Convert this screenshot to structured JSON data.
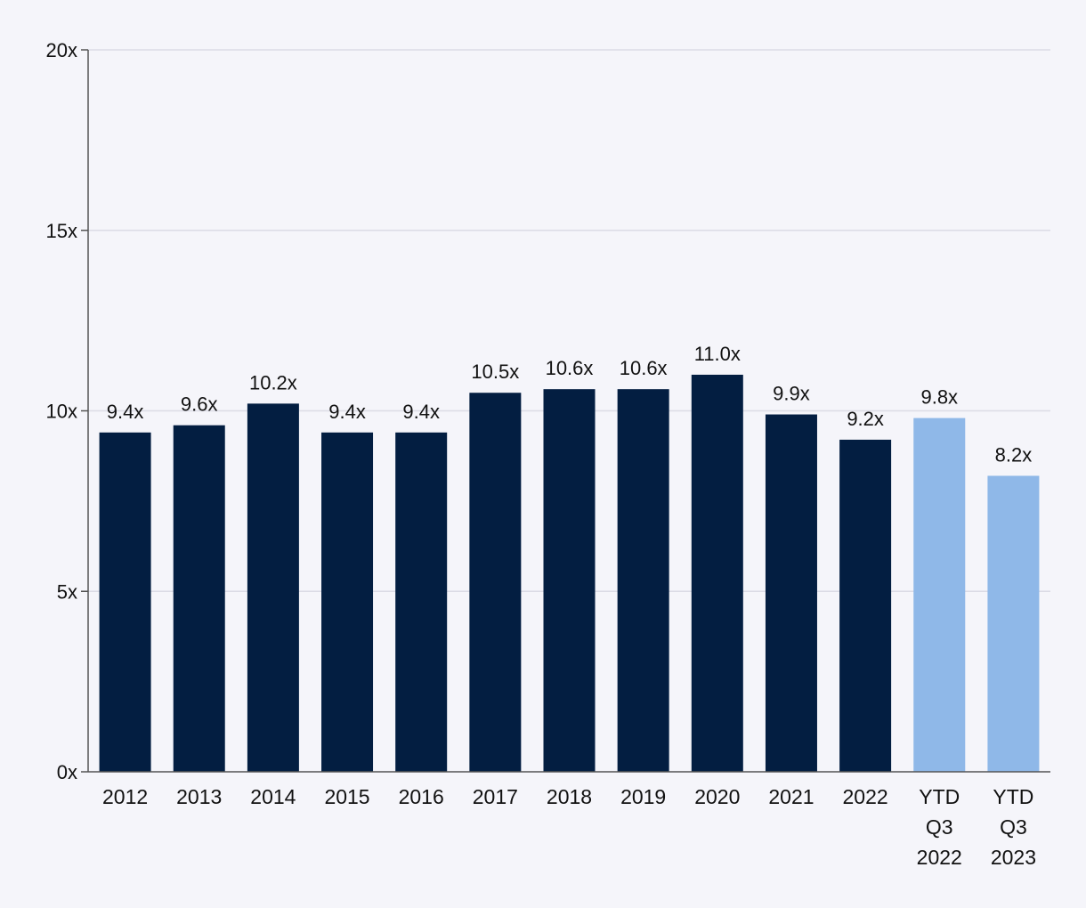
{
  "chart_data": {
    "type": "bar",
    "title": "",
    "xlabel": "",
    "ylabel": "",
    "ylim": [
      0,
      20
    ],
    "yticks": [
      {
        "value": 0,
        "label": "0x"
      },
      {
        "value": 5,
        "label": "5x"
      },
      {
        "value": 10,
        "label": "10x"
      },
      {
        "value": 15,
        "label": "15x"
      },
      {
        "value": 20,
        "label": "20x"
      }
    ],
    "grid": true,
    "legend": "none",
    "bars": [
      {
        "category": [
          "2012"
        ],
        "value": 9.4,
        "label": "9.4x",
        "color": "#031e41"
      },
      {
        "category": [
          "2013"
        ],
        "value": 9.6,
        "label": "9.6x",
        "color": "#031e41"
      },
      {
        "category": [
          "2014"
        ],
        "value": 10.2,
        "label": "10.2x",
        "color": "#031e41"
      },
      {
        "category": [
          "2015"
        ],
        "value": 9.4,
        "label": "9.4x",
        "color": "#031e41"
      },
      {
        "category": [
          "2016"
        ],
        "value": 9.4,
        "label": "9.4x",
        "color": "#031e41"
      },
      {
        "category": [
          "2017"
        ],
        "value": 10.5,
        "label": "10.5x",
        "color": "#031e41"
      },
      {
        "category": [
          "2018"
        ],
        "value": 10.6,
        "label": "10.6x",
        "color": "#031e41"
      },
      {
        "category": [
          "2019"
        ],
        "value": 10.6,
        "label": "10.6x",
        "color": "#031e41"
      },
      {
        "category": [
          "2020"
        ],
        "value": 11.0,
        "label": "11.0x",
        "color": "#031e41"
      },
      {
        "category": [
          "2021"
        ],
        "value": 9.9,
        "label": "9.9x",
        "color": "#031e41"
      },
      {
        "category": [
          "2022"
        ],
        "value": 9.2,
        "label": "9.2x",
        "color": "#031e41"
      },
      {
        "category": [
          "YTD",
          "Q3",
          "2022"
        ],
        "value": 9.8,
        "label": "9.8x",
        "color": "#8fb8e8"
      },
      {
        "category": [
          "YTD",
          "Q3",
          "2023"
        ],
        "value": 8.2,
        "label": "8.2x",
        "color": "#8fb8e8"
      }
    ]
  }
}
